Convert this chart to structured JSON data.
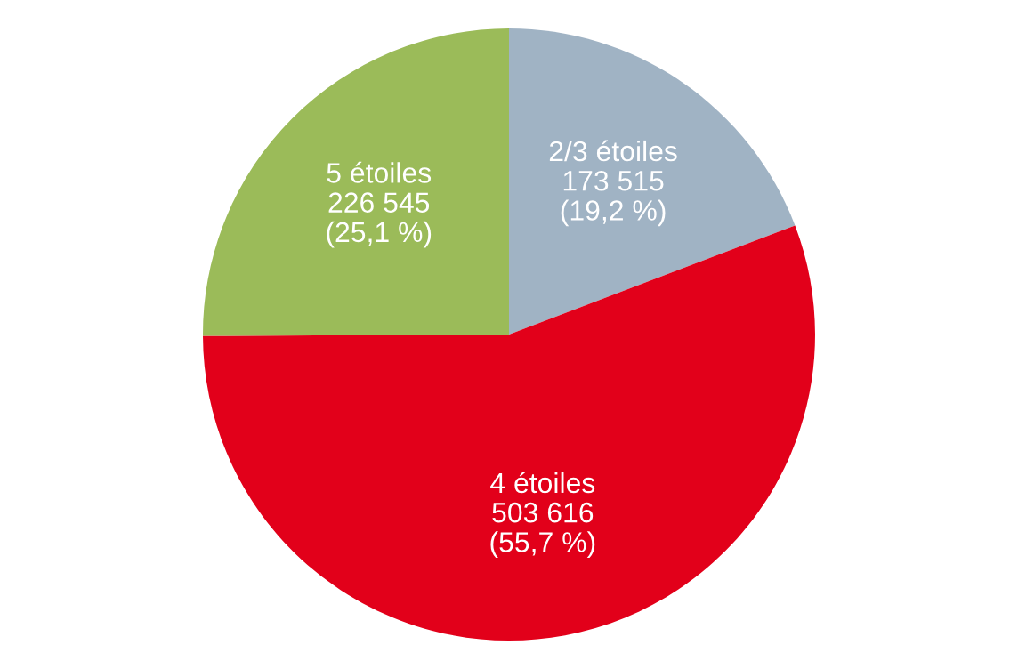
{
  "chart_data": {
    "type": "pie",
    "categories": [
      "2/3 étoiles",
      "4 étoiles",
      "5 étoiles"
    ],
    "values": [
      173515,
      503616,
      226545
    ],
    "colors": [
      "#a0b3c4",
      "#e2001a",
      "#9bbb59"
    ],
    "value_labels": [
      "173 515\n(19,2 %)",
      "503 616\n(55,7 %)",
      "226 545\n(25,1 %)"
    ],
    "legend": false
  }
}
